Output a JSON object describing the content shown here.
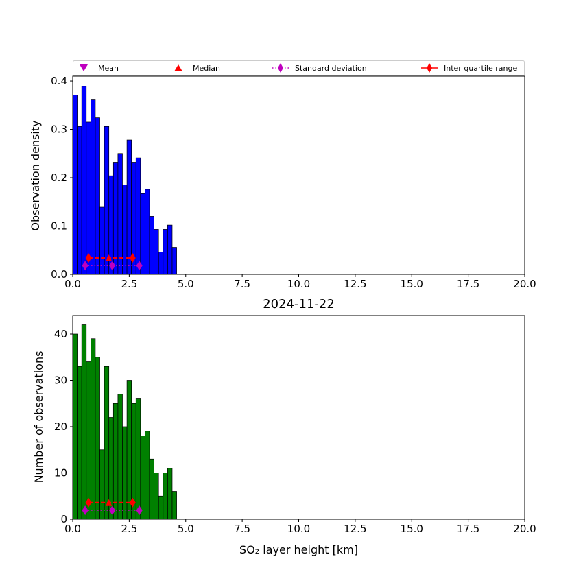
{
  "figure": {
    "legend": {
      "mean": "Mean",
      "median": "Median",
      "std": "Standard deviation",
      "iqr": "Inter quartile range"
    }
  },
  "colors": {
    "density_bars": "#0000ff",
    "count_bars": "#008000",
    "mean_marker": "#bf00bf",
    "std_marker": "#bf00bf",
    "median_marker": "#ff0000",
    "iqr_marker": "#ff0000"
  },
  "chart_data": [
    {
      "type": "bar",
      "title": "",
      "xlabel": "",
      "ylabel": "Observation density",
      "xlim": [
        0,
        20
      ],
      "ylim": [
        0,
        0.41
      ],
      "xticks": [
        "0.0",
        "2.5",
        "5.0",
        "7.5",
        "10.0",
        "12.5",
        "15.0",
        "17.5",
        "20.0"
      ],
      "yticks": [
        "0.0",
        "0.1",
        "0.2",
        "0.3",
        "0.4"
      ],
      "ytick_values": [
        0,
        0.1,
        0.2,
        0.3,
        0.4
      ],
      "bin_width": 0.2,
      "bin_start": 0.0,
      "values": [
        0.371,
        0.306,
        0.389,
        0.315,
        0.361,
        0.324,
        0.139,
        0.306,
        0.204,
        0.232,
        0.25,
        0.185,
        0.278,
        0.232,
        0.241,
        0.167,
        0.176,
        0.12,
        0.093,
        0.046,
        0.093,
        0.102,
        0.056
      ],
      "legend": "top",
      "markers": {
        "mean": 1.75,
        "median": 1.6,
        "iqr": [
          0.7,
          2.65
        ],
        "std": [
          0.55,
          2.95
        ],
        "y_iqr": 0.034,
        "y_std": 0.018
      }
    },
    {
      "type": "bar",
      "title": "2024-11-22",
      "xlabel": "SO₂ layer height [km]",
      "ylabel": "Number of observations",
      "xlim": [
        0,
        20
      ],
      "ylim": [
        0,
        44
      ],
      "xticks": [
        "0.0",
        "2.5",
        "5.0",
        "7.5",
        "10.0",
        "12.5",
        "15.0",
        "17.5",
        "20.0"
      ],
      "yticks": [
        "0",
        "10",
        "20",
        "30",
        "40"
      ],
      "ytick_values": [
        0,
        10,
        20,
        30,
        40
      ],
      "bin_width": 0.2,
      "bin_start": 0.0,
      "values": [
        40,
        33,
        42,
        34,
        39,
        35,
        15,
        33,
        22,
        25,
        27,
        20,
        30,
        25,
        26,
        18,
        19,
        13,
        10,
        5,
        10,
        11,
        6
      ],
      "markers": {
        "mean": 1.75,
        "median": 1.6,
        "iqr": [
          0.7,
          2.65
        ],
        "std": [
          0.55,
          2.95
        ],
        "y_iqr": 3.6,
        "y_std": 1.9
      }
    }
  ]
}
